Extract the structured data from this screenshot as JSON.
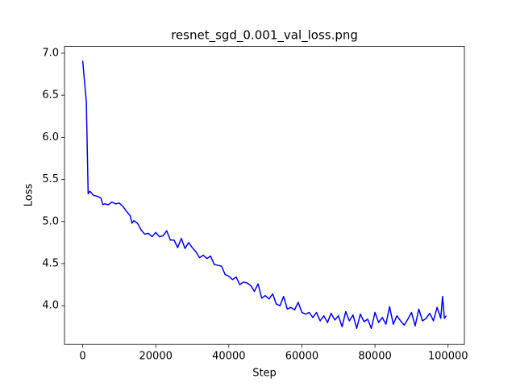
{
  "chart_data": {
    "type": "line",
    "title": "resnet_sgd_0.001_val_loss.png",
    "x_label": "Step",
    "y_label": "Loss",
    "x": [
      0,
      1000,
      1500,
      2000,
      3000,
      4000,
      5000,
      5500,
      6000,
      7000,
      8000,
      9000,
      10000,
      11000,
      12000,
      13000,
      13500,
      14000,
      15000,
      16000,
      17000,
      18000,
      19000,
      20000,
      21000,
      22000,
      23000,
      24000,
      25000,
      26000,
      27000,
      28000,
      29000,
      30000,
      31000,
      32000,
      33000,
      34000,
      35000,
      36000,
      37000,
      38000,
      39000,
      40000,
      41000,
      42000,
      43000,
      44000,
      45000,
      46000,
      47000,
      48000,
      49000,
      50000,
      51000,
      52000,
      53000,
      54000,
      55000,
      56000,
      57000,
      58000,
      59000,
      60000,
      61000,
      62000,
      63000,
      64000,
      65000,
      66000,
      67000,
      68000,
      69000,
      70000,
      71000,
      72000,
      73000,
      74000,
      75000,
      76000,
      77000,
      78000,
      79000,
      80000,
      81000,
      82000,
      83000,
      84000,
      85000,
      86000,
      87000,
      88000,
      89000,
      90000,
      91000,
      92000,
      93000,
      94000,
      95000,
      96000,
      97000,
      98000,
      98500,
      99000,
      99500
    ],
    "values": [
      6.91,
      6.42,
      5.33,
      5.36,
      5.31,
      5.3,
      5.28,
      5.2,
      5.21,
      5.2,
      5.23,
      5.21,
      5.22,
      5.18,
      5.12,
      5.07,
      4.98,
      5.01,
      4.98,
      4.9,
      4.85,
      4.86,
      4.82,
      4.87,
      4.82,
      4.83,
      4.89,
      4.78,
      4.78,
      4.69,
      4.8,
      4.68,
      4.75,
      4.69,
      4.64,
      4.57,
      4.6,
      4.56,
      4.59,
      4.49,
      4.48,
      4.47,
      4.37,
      4.35,
      4.31,
      4.34,
      4.25,
      4.28,
      4.27,
      4.24,
      4.17,
      4.26,
      4.09,
      4.12,
      4.08,
      4.14,
      4.02,
      4.0,
      4.11,
      3.96,
      3.98,
      3.95,
      4.04,
      3.92,
      3.9,
      3.92,
      3.86,
      3.92,
      3.82,
      3.88,
      3.8,
      3.91,
      3.83,
      3.88,
      3.75,
      3.93,
      3.82,
      3.89,
      3.73,
      3.9,
      3.81,
      3.84,
      3.73,
      3.92,
      3.8,
      3.86,
      3.78,
      3.99,
      3.78,
      3.88,
      3.82,
      3.77,
      3.84,
      3.92,
      3.76,
      3.96,
      3.82,
      3.85,
      3.91,
      3.82,
      3.98,
      3.85,
      4.11,
      3.85,
      3.88
    ],
    "color": "#0000ff",
    "xlim": [
      -4975,
      104475
    ],
    "xticks": [
      0,
      20000,
      40000,
      60000,
      80000,
      100000
    ],
    "ylim": [
      3.54,
      7.08
    ],
    "yticks": [
      {
        "value": 4.0,
        "label": "4.0"
      },
      {
        "value": 4.5,
        "label": "4.5"
      },
      {
        "value": 5.0,
        "label": "5.0"
      },
      {
        "value": 5.5,
        "label": "5.5"
      },
      {
        "value": 6.0,
        "label": "6.0"
      },
      {
        "value": 6.5,
        "label": "6.5"
      },
      {
        "value": 7.0,
        "label": "7.0"
      }
    ],
    "grid": false
  }
}
